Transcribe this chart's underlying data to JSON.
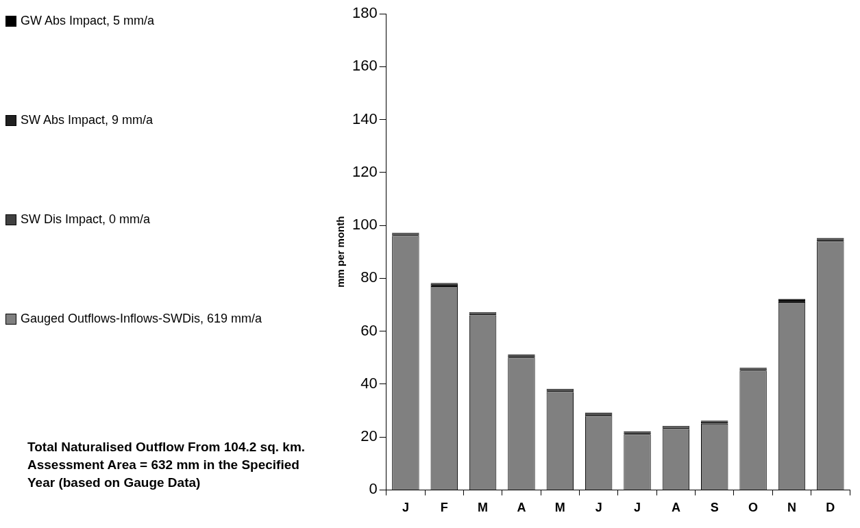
{
  "chart_data": {
    "type": "bar",
    "ylabel": "mm per month",
    "categories": [
      "J",
      "F",
      "M",
      "A",
      "M",
      "J",
      "J",
      "A",
      "S",
      "O",
      "N",
      "D"
    ],
    "series": [
      {
        "name": "Gauged Outflows-Inflows-SWDis, 619 mm/a",
        "color": "#808080",
        "values": [
          96,
          77,
          66,
          50,
          37,
          28,
          21,
          23,
          25,
          45,
          71,
          94
        ]
      },
      {
        "name": "SW Dis Impact, 0 mm/a",
        "color": "#404040",
        "values": [
          0,
          0,
          0,
          0,
          0,
          0,
          0,
          0,
          0,
          0,
          0,
          0
        ]
      },
      {
        "name": "SW Abs Impact, 9 mm/a",
        "color": "#202020",
        "values": [
          0.8,
          0.8,
          0.8,
          0.8,
          0.8,
          0.8,
          0.8,
          0.8,
          0.8,
          0.8,
          0.8,
          0.8
        ]
      },
      {
        "name": "GW Abs Impact, 5 mm/a",
        "color": "#000000",
        "values": [
          0.4,
          0.4,
          0.4,
          0.4,
          0.4,
          0.4,
          0.4,
          0.4,
          0.4,
          0.4,
          0.4,
          0.4
        ]
      }
    ],
    "stacked": true,
    "ylim": [
      0,
      180
    ],
    "yticks": [
      0,
      20,
      40,
      60,
      80,
      100,
      120,
      140,
      160,
      180
    ],
    "grid": false,
    "legend": "left",
    "annotations": [
      "Total Naturalised Outflow From 104.2 sq. km. Assessment Area = 632 mm in the Specified Year (based on Gauge Data)"
    ]
  }
}
